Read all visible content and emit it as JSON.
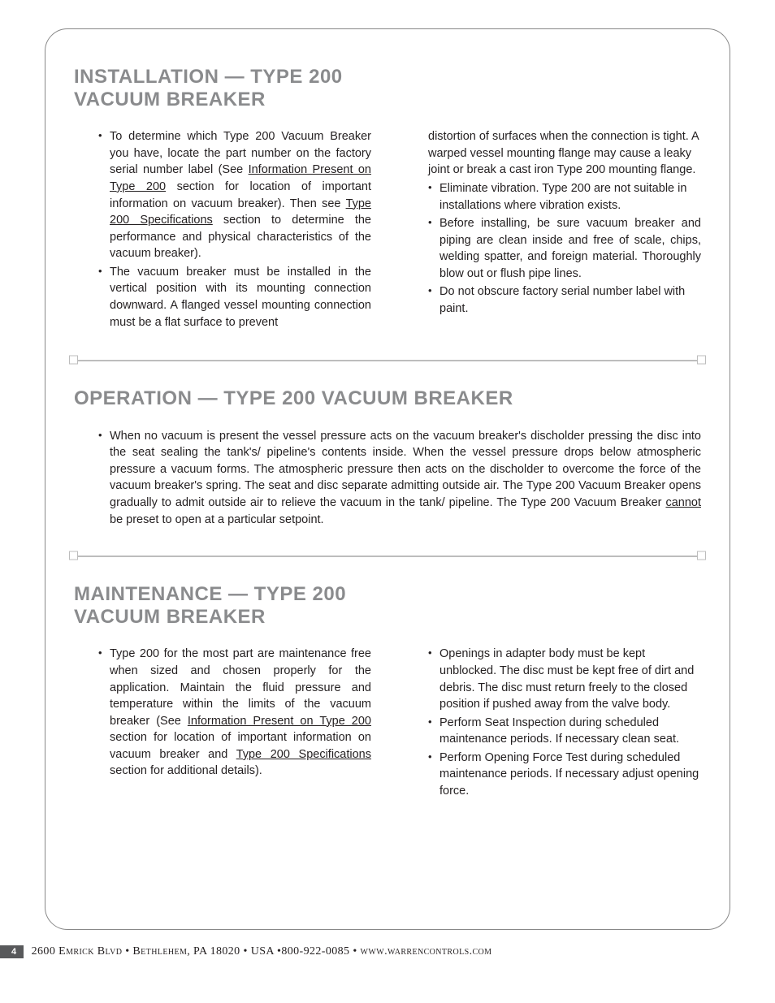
{
  "sections": {
    "installation": {
      "title": "INSTALLATION — TYPE 200 VACUUM BREAKER",
      "left": [
        "To determine which Type 200 Vacuum Breaker you have, locate the part number on the factory serial number label (See <span class='underline'>Information Present on Type 200</span> section for location of important information on vacuum breaker). Then see <span class='underline'>Type 200 Specifications</span> section to determine the performance and physical characteristics of the vacuum breaker).",
        "The vacuum breaker must be installed in the vertical position with its mounting connection downward. A flanged vessel mounting connection must be a flat surface to prevent"
      ],
      "right_cont": "distortion of surfaces when the connection is tight. A warped vessel mounting flange may cause a leaky joint or break a cast iron Type 200 mounting flange.",
      "right": [
        "Eliminate vibration. Type 200 are not suitable in installations where vibration exists.",
        "Before installing, be sure vacuum breaker and piping are clean inside and free of scale, chips, welding spatter, and foreign material. Thoroughly blow out or flush pipe lines.",
        "Do not obscure factory serial number label with paint."
      ]
    },
    "operation": {
      "title": "OPERATION — TYPE 200 VACUUM BREAKER",
      "items": [
        "When no vacuum is present the vessel pressure acts on the vacuum breaker's discholder pressing the disc into the seat sealing the tank's/ pipeline's contents inside. When the vessel pressure drops below atmospheric pressure a vacuum forms. The atmospheric pressure then acts on the discholder to overcome the force of the vacuum breaker's spring. The seat and disc separate admitting outside air. The Type 200 Vacuum Breaker opens gradually to admit outside air to relieve the vacuum in the tank/ pipeline. The Type 200 Vacuum Breaker <span class='underline'>cannot</span> be preset to open at a particular setpoint."
      ]
    },
    "maintenance": {
      "title": "MAINTENANCE — TYPE 200 VACUUM BREAKER",
      "left": [
        "Type 200 for the most part are maintenance free when sized and chosen properly for the application. Maintain the fluid pressure and temperature within the limits of the vacuum breaker (See <span class='underline'>Information Present on Type 200</span> section for location of important information on vacuum breaker and <span class='underline'>Type 200 Specifications</span> section for additional details)."
      ],
      "right": [
        "Openings in adapter body must be kept unblocked. The disc must be kept free of dirt and debris. The disc must return freely to the closed position if pushed away from the valve body.",
        "Perform Seat Inspection during scheduled maintenance periods. If necessary clean seat.",
        "Perform Opening Force Test during scheduled maintenance periods. If necessary adjust opening force."
      ]
    }
  },
  "footer": {
    "page": "4",
    "address": "2600 Emrick Blvd • Bethlehem, PA 18020 • USA •800-922-0085 • www.warrencontrols.com"
  },
  "colors": {
    "title": "#8a8b8d",
    "text": "#231f20",
    "divider": "#bdbdbd",
    "frame": "#888888",
    "badge_bg": "#58595b"
  }
}
